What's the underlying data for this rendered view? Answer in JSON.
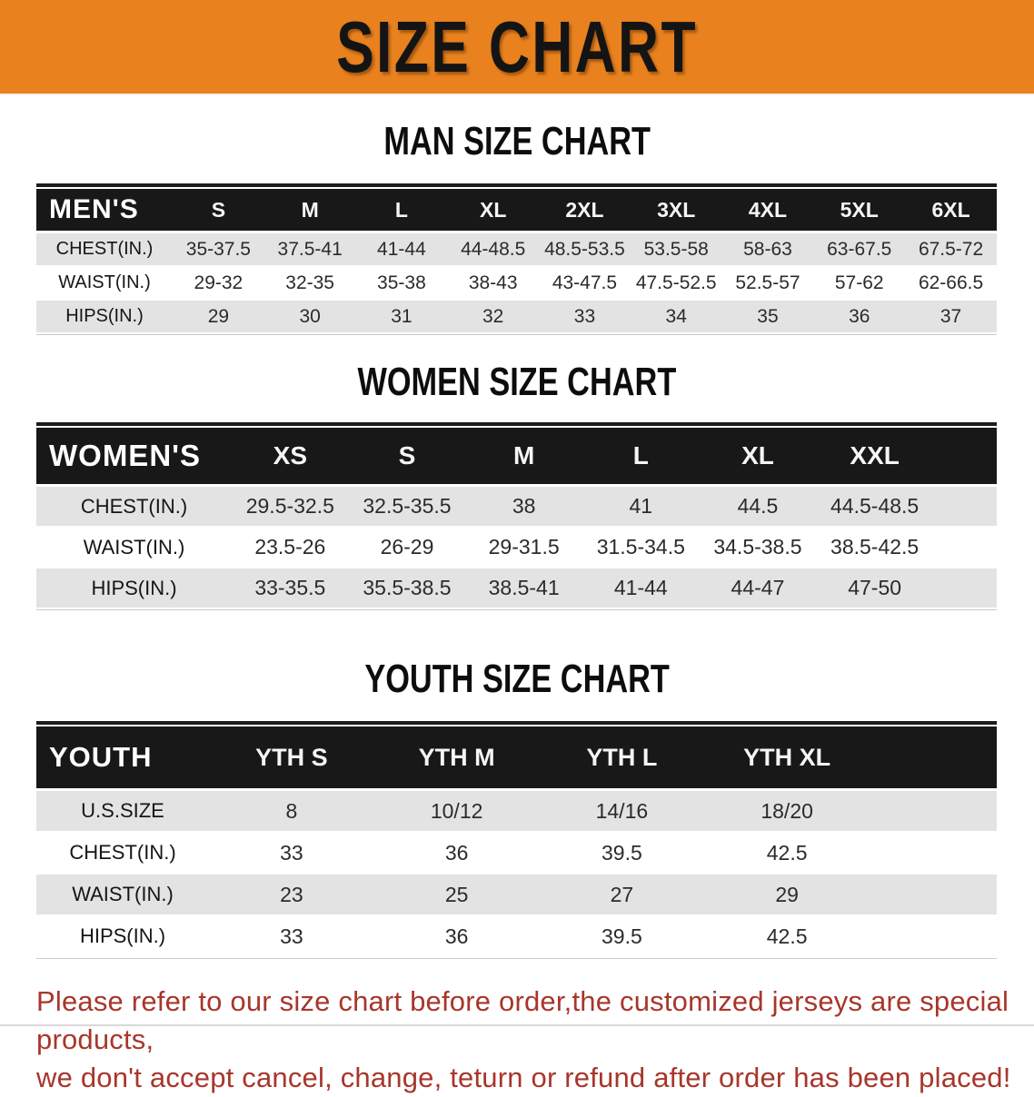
{
  "banner": {
    "title": "SIZE CHART",
    "bg_color": "#E8811E"
  },
  "sections": [
    {
      "heading": "MAN SIZE CHART",
      "table": {
        "label": "MEN'S",
        "columns": [
          "S",
          "M",
          "L",
          "XL",
          "2XL",
          "3XL",
          "4XL",
          "5XL",
          "6XL"
        ],
        "rows": [
          {
            "label": "CHEST(IN.)",
            "values": [
              "35-37.5",
              "37.5-41",
              "41-44",
              "44-48.5",
              "48.5-53.5",
              "53.5-58",
              "58-63",
              "63-67.5",
              "67.5-72"
            ]
          },
          {
            "label": "WAIST(IN.)",
            "values": [
              "29-32",
              "32-35",
              "35-38",
              "38-43",
              "43-47.5",
              "47.5-52.5",
              "52.5-57",
              "57-62",
              "62-66.5"
            ]
          },
          {
            "label": "HIPS(IN.)",
            "values": [
              "29",
              "30",
              "31",
              "32",
              "33",
              "34",
              "35",
              "36",
              "37"
            ]
          }
        ]
      }
    },
    {
      "heading": "WOMEN SIZE CHART",
      "table": {
        "label": "WOMEN'S",
        "columns": [
          "XS",
          "S",
          "M",
          "L",
          "XL",
          "XXL"
        ],
        "rows": [
          {
            "label": "CHEST(IN.)",
            "values": [
              "29.5-32.5",
              "32.5-35.5",
              "38",
              "41",
              "44.5",
              "44.5-48.5"
            ]
          },
          {
            "label": "WAIST(IN.)",
            "values": [
              "23.5-26",
              "26-29",
              "29-31.5",
              "31.5-34.5",
              "34.5-38.5",
              "38.5-42.5"
            ]
          },
          {
            "label": "HIPS(IN.)",
            "values": [
              "33-35.5",
              "35.5-38.5",
              "38.5-41",
              "41-44",
              "44-47",
              "47-50"
            ]
          }
        ]
      }
    },
    {
      "heading": "YOUTH SIZE CHART",
      "table": {
        "label": "YOUTH",
        "columns": [
          "YTH S",
          "YTH M",
          "YTH L",
          "YTH XL"
        ],
        "rows": [
          {
            "label": "U.S.SIZE",
            "values": [
              "8",
              "10/12",
              "14/16",
              "18/20"
            ]
          },
          {
            "label": "CHEST(IN.)",
            "values": [
              "33",
              "36",
              "39.5",
              "42.5"
            ]
          },
          {
            "label": "WAIST(IN.)",
            "values": [
              "23",
              "25",
              "27",
              "29"
            ]
          },
          {
            "label": "HIPS(IN.)",
            "values": [
              "33",
              "36",
              "39.5",
              "42.5"
            ]
          }
        ]
      }
    }
  ],
  "footer": {
    "line1": "Please refer to our size chart before order,the customized jerseys are special products,",
    "line2": "we don't accept cancel, change, teturn or refund after order has been placed!",
    "text_color": "#A8362B"
  }
}
